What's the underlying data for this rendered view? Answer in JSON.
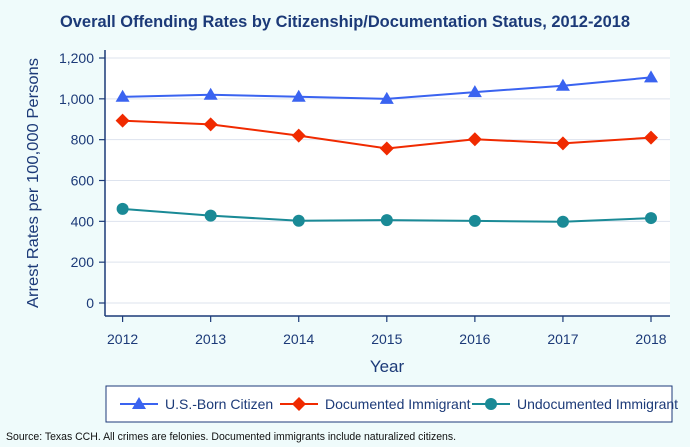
{
  "chart_data": {
    "type": "line",
    "title": "Overall Offending Rates by Citizenship/Documentation Status, 2012-2018",
    "xlabel": "Year",
    "ylabel": "Arrest Rates per 100,000 Persons",
    "categories": [
      "2012",
      "2013",
      "2014",
      "2015",
      "2016",
      "2017",
      "2018"
    ],
    "ylim": [
      -60,
      1220
    ],
    "yticks": [
      0,
      200,
      400,
      600,
      800,
      1000,
      1200
    ],
    "ytick_labels": [
      "0",
      "200",
      "400",
      "600",
      "800",
      "1,000",
      "1,200"
    ],
    "grid": true,
    "legend_position": "bottom",
    "series": [
      {
        "name": "U.S.-Born Citizen",
        "color": "#3a63f0",
        "marker": "triangle",
        "values": [
          1010,
          1020,
          1010,
          1000,
          1033,
          1064,
          1105
        ]
      },
      {
        "name": "Documented Immigrant",
        "color": "#f02a00",
        "marker": "diamond",
        "values": [
          893,
          875,
          820,
          757,
          802,
          782,
          810
        ]
      },
      {
        "name": "Undocumented Immigrant",
        "color": "#1a8a96",
        "marker": "circle",
        "values": [
          461,
          428,
          403,
          406,
          402,
          398,
          416
        ]
      }
    ]
  },
  "source": "Source: Texas CCH. All crimes are felonies. Documented immigrants include naturalized citizens."
}
